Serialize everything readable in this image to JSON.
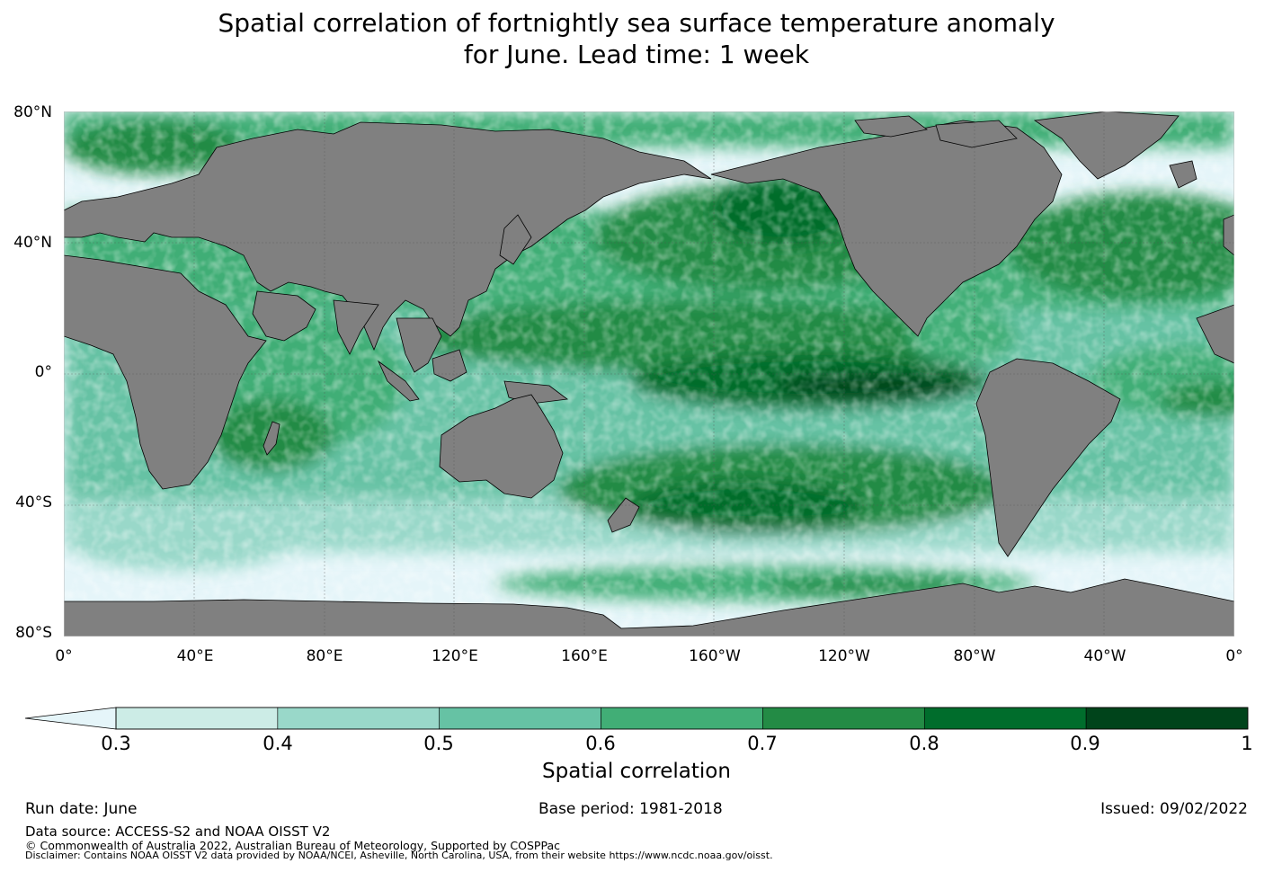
{
  "title": {
    "line1": "Spatial correlation of fortnightly sea surface temperature anomaly",
    "line2": "for June. Lead time: 1 week"
  },
  "map": {
    "lat_labels": [
      "80°N",
      "40°N",
      "0°",
      "40°S",
      "80°S"
    ],
    "lon_labels": [
      "0°",
      "40°E",
      "80°E",
      "120°E",
      "160°E",
      "160°W",
      "120°W",
      "80°W",
      "40°W",
      "0°"
    ],
    "colors": {
      "land": "#808080",
      "below_min": "#e5f5f9",
      "coast": "#000000",
      "grid": "#555555"
    }
  },
  "colorbar": {
    "label": "Spatial correlation",
    "ticks": [
      "0.3",
      "0.4",
      "0.5",
      "0.6",
      "0.7",
      "0.8",
      "0.9",
      "1"
    ],
    "bins": [
      {
        "from": 0.3,
        "to": 0.4,
        "color": "#ccece6"
      },
      {
        "from": 0.4,
        "to": 0.5,
        "color": "#99d8c9"
      },
      {
        "from": 0.5,
        "to": 0.6,
        "color": "#66c2a4"
      },
      {
        "from": 0.6,
        "to": 0.7,
        "color": "#41ae76"
      },
      {
        "from": 0.7,
        "to": 0.8,
        "color": "#238b45"
      },
      {
        "from": 0.8,
        "to": 0.9,
        "color": "#006d2c"
      },
      {
        "from": 0.9,
        "to": 1.0,
        "color": "#00441b"
      }
    ],
    "under_color": "#e5f5f9"
  },
  "footer": {
    "run_date": "Run date: June",
    "base_period": "Base period: 1981-2018",
    "issued": "Issued: 09/02/2022",
    "data_source": "Data source: ACCESS-S2 and NOAA OISST V2",
    "copyright": "© Commonwealth of Australia 2022, Australian Bureau of Meteorology, Supported by COSPPac",
    "disclaimer": "Disclaimer: Contains NOAA OISST V2 data provided by NOAA/NCEI, Asheville, North Carolina, USA, from their website https://www.ncdc.noaa.gov/oisst."
  }
}
